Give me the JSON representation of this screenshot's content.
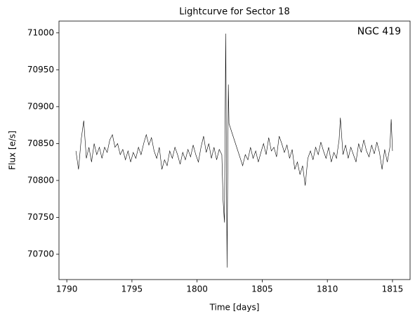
{
  "chart_data": {
    "type": "line",
    "title": "Lightcurve for Sector 18",
    "annotation": "NGC 419",
    "x_label": "Time [days]",
    "y_label": "Flux [e/s]",
    "xlim": [
      1789.4,
      1816.35
    ],
    "ylim": [
      70665.7,
      71016
    ],
    "xticks": [
      1790,
      1795,
      1800,
      1805,
      1810,
      1815
    ],
    "yticks": [
      70700,
      70750,
      70800,
      70850,
      70900,
      70950,
      71000
    ],
    "series": [
      {
        "name": "NGC 419",
        "color": "#000000",
        "x": [
          1790.7,
          1790.9,
          1791.1,
          1791.3,
          1791.5,
          1791.7,
          1791.9,
          1792.1,
          1792.3,
          1792.5,
          1792.7,
          1792.9,
          1793.1,
          1793.3,
          1793.5,
          1793.7,
          1793.9,
          1794.1,
          1794.3,
          1794.5,
          1794.7,
          1794.9,
          1795.1,
          1795.3,
          1795.5,
          1795.7,
          1795.9,
          1796.1,
          1796.3,
          1796.5,
          1796.7,
          1796.9,
          1797.1,
          1797.3,
          1797.5,
          1797.7,
          1797.9,
          1798.1,
          1798.3,
          1798.5,
          1798.7,
          1798.9,
          1799.1,
          1799.3,
          1799.5,
          1799.7,
          1799.9,
          1800.1,
          1800.3,
          1800.5,
          1800.7,
          1800.9,
          1801.1,
          1801.3,
          1801.5,
          1801.7,
          1801.9,
          1802.0,
          1802.1,
          1802.2,
          1802.3,
          1802.4,
          1802.45,
          1803.5,
          1803.7,
          1803.9,
          1804.1,
          1804.3,
          1804.5,
          1804.7,
          1804.9,
          1805.1,
          1805.3,
          1805.5,
          1805.7,
          1805.9,
          1806.1,
          1806.3,
          1806.5,
          1806.7,
          1806.9,
          1807.1,
          1807.3,
          1807.5,
          1807.7,
          1807.9,
          1808.1,
          1808.3,
          1808.5,
          1808.7,
          1808.9,
          1809.1,
          1809.3,
          1809.5,
          1809.7,
          1809.9,
          1810.1,
          1810.3,
          1810.5,
          1810.7,
          1810.9,
          1811.0,
          1811.2,
          1811.4,
          1811.6,
          1811.8,
          1812.0,
          1812.2,
          1812.4,
          1812.6,
          1812.8,
          1813.0,
          1813.2,
          1813.4,
          1813.6,
          1813.8,
          1814.0,
          1814.2,
          1814.4,
          1814.6,
          1814.8,
          1814.9,
          1815.0
        ],
        "values": [
          70840,
          70815,
          70855,
          70881,
          70830,
          70845,
          70825,
          70850,
          70835,
          70845,
          70830,
          70845,
          70838,
          70855,
          70862,
          70845,
          70850,
          70835,
          70842,
          70828,
          70840,
          70825,
          70838,
          70830,
          70845,
          70835,
          70850,
          70862,
          70848,
          70858,
          70840,
          70830,
          70845,
          70815,
          70828,
          70820,
          70840,
          70830,
          70845,
          70835,
          70822,
          70838,
          70828,
          70842,
          70832,
          70848,
          70835,
          70825,
          70845,
          70860,
          70838,
          70850,
          70830,
          70845,
          70828,
          70842,
          70835,
          70772,
          70743,
          70999,
          70682,
          70930,
          70877,
          70820,
          70835,
          70828,
          70845,
          70830,
          70840,
          70825,
          70838,
          70850,
          70835,
          70858,
          70840,
          70845,
          70832,
          70860,
          70850,
          70838,
          70848,
          70830,
          70842,
          70815,
          70825,
          70808,
          70820,
          70793,
          70830,
          70840,
          70828,
          70845,
          70835,
          70852,
          70840,
          70830,
          70845,
          70825,
          70838,
          70830,
          70855,
          70885,
          70835,
          70848,
          70830,
          70845,
          70835,
          70825,
          70850,
          70838,
          70855,
          70840,
          70832,
          70848,
          70836,
          70852,
          70838,
          70815,
          70842,
          70825,
          70845,
          70883,
          70840
        ]
      }
    ]
  }
}
